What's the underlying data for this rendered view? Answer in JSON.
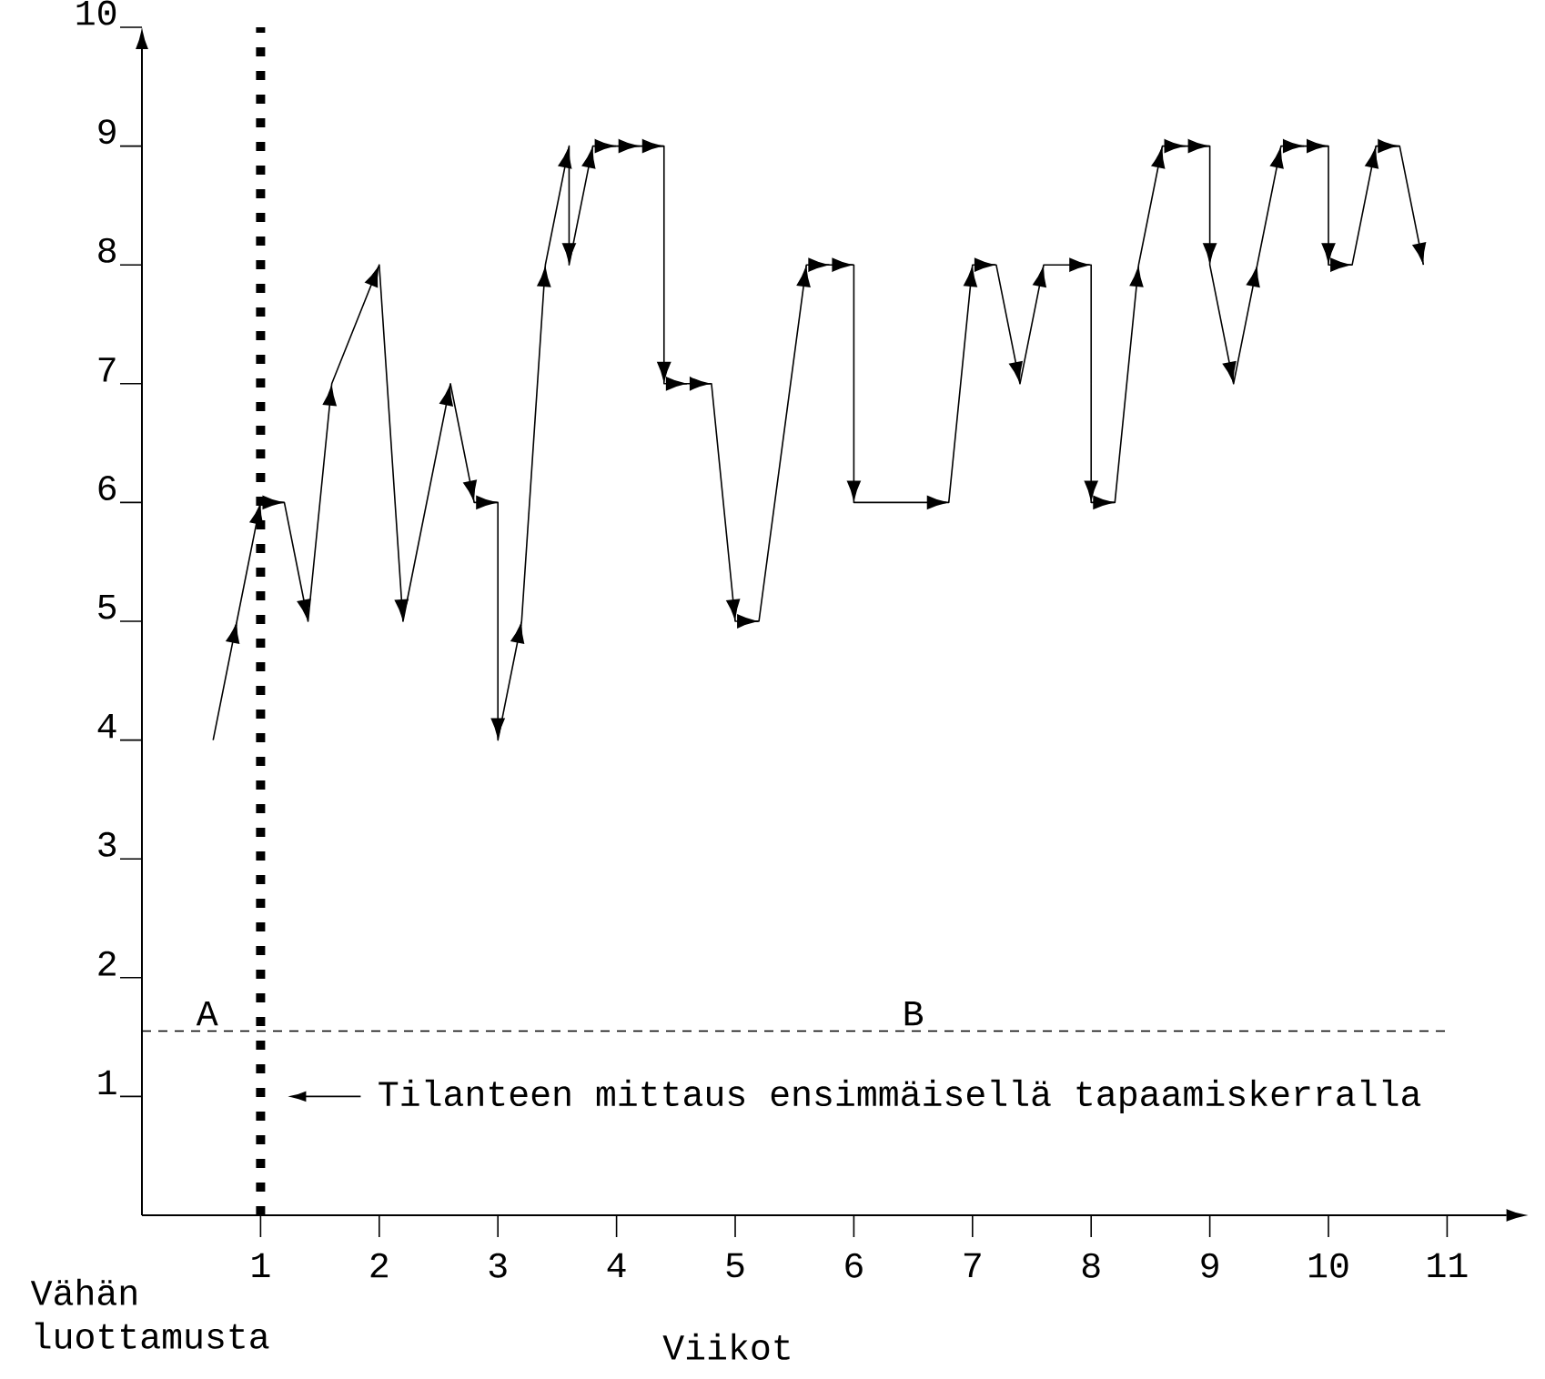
{
  "chart_data": {
    "type": "line",
    "xlabel": "Viikot",
    "ylabel": "Vähän luottamusta",
    "series": [
      {
        "color": "#000000",
        "x": [
          0.6,
          0.8,
          1.0,
          1.2,
          1.4,
          1.6,
          2.0,
          2.2,
          2.6,
          2.8,
          3.0,
          3.0,
          3.2,
          3.4,
          3.6,
          3.6,
          3.8,
          4.0,
          4.2,
          4.4,
          4.4,
          4.6,
          4.8,
          5.0,
          5.2,
          5.6,
          5.8,
          6.0,
          6.0,
          6.8,
          7.0,
          7.2,
          7.4,
          7.6,
          8.0,
          8.0,
          8.2,
          8.4,
          8.6,
          8.8,
          9.0,
          9.0,
          9.2,
          9.4,
          9.6,
          9.8,
          10.0,
          10.0,
          10.2,
          10.4,
          10.6,
          10.8
        ],
        "values": [
          4,
          5,
          6,
          6,
          5,
          7,
          8,
          5,
          7,
          6,
          6,
          4,
          5,
          8,
          9,
          8,
          9,
          9,
          9,
          9,
          7,
          7,
          7,
          5,
          5,
          8,
          8,
          8,
          6,
          6,
          8,
          8,
          7,
          8,
          8,
          6,
          6,
          8,
          9,
          9,
          9,
          8,
          7,
          8,
          9,
          9,
          9,
          8,
          8,
          9,
          9,
          8
        ]
      }
    ],
    "xlim": [
      0,
      11.5
    ],
    "xticks": [
      1,
      2,
      3,
      4,
      5,
      6,
      7,
      8,
      9,
      10,
      11
    ],
    "ylim": [
      0,
      10
    ],
    "yticks": [
      1,
      2,
      3,
      4,
      5,
      6,
      7,
      8,
      9,
      10
    ],
    "ref_lines": [
      {
        "axis": "x",
        "value": 1,
        "line_style": "dotted",
        "color": "#000000"
      },
      {
        "axis": "y",
        "value": 1.55,
        "line_style": "dashed",
        "color": "#000000"
      }
    ],
    "annotations": [
      {
        "text": "A",
        "x": 0.55,
        "y": 1.55
      },
      {
        "text": "B",
        "x": 6.5,
        "y": 1.55
      },
      "Tilanteen mittaus ensimmäisellä tapaamiskerralla"
    ]
  }
}
